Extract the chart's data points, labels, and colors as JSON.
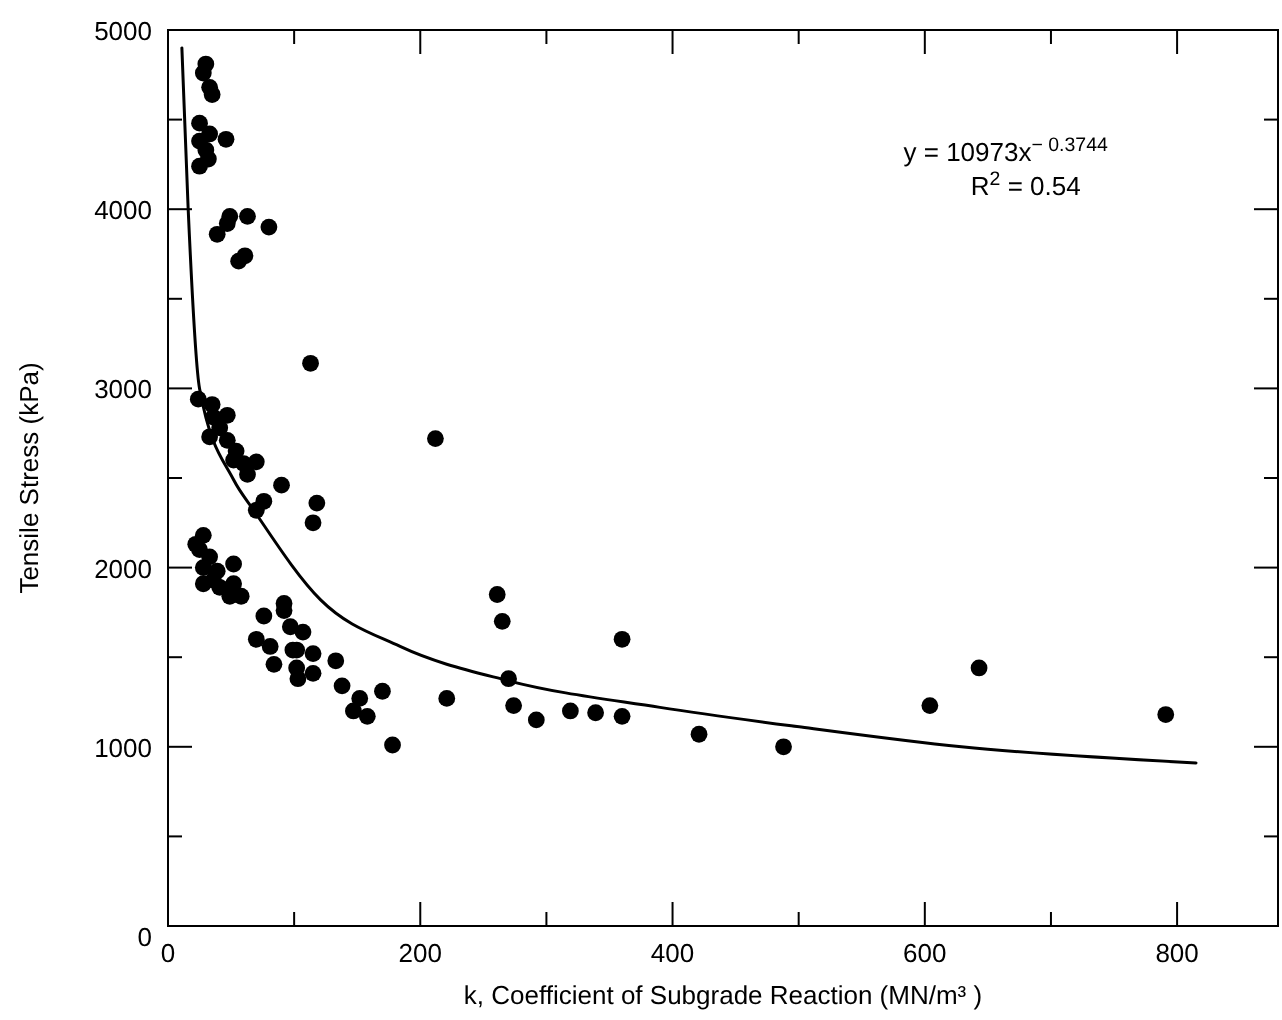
{
  "chart_data": {
    "type": "scatter",
    "xlabel": "k, Coefficient of Subgrade Reaction (MN/m³ )",
    "ylabel": "Tensile Stress (kPa)",
    "xlim": [
      0,
      880
    ],
    "ylim": [
      0,
      5000
    ],
    "xticks": [
      0,
      {
        "value": 100,
        "label": null
      },
      200,
      {
        "value": 300,
        "label": null
      },
      400,
      {
        "value": 500,
        "label": null
      },
      600,
      {
        "value": 700,
        "label": null
      },
      800
    ],
    "yticks": [
      0,
      {
        "value": 500,
        "label": null
      },
      1000,
      {
        "value": 1500,
        "label": null
      },
      2000,
      {
        "value": 2500,
        "label": null
      },
      3000,
      {
        "value": 3500,
        "label": null
      },
      4000,
      {
        "value": 4500,
        "label": null
      },
      5000
    ],
    "grid": false,
    "annotations": [
      "y = 10973x$^{− 0.3744}$",
      "R$^{2}$ = 0.54"
    ],
    "series": [
      {
        "color": "#000000",
        "marker": "circle",
        "x": [
          30,
          28,
          33,
          35,
          25,
          33,
          46,
          25,
          30,
          32,
          25,
          49,
          63,
          47,
          39,
          80,
          61,
          56,
          113,
          24,
          35,
          36,
          47,
          41,
          33,
          47,
          54,
          52,
          60,
          70,
          63,
          90,
          212,
          118,
          76,
          70,
          115,
          22,
          28,
          25,
          33,
          28,
          39,
          52,
          28,
          36,
          41,
          52,
          49,
          58,
          76,
          92,
          92,
          70,
          81,
          84,
          97,
          107,
          99,
          102,
          115,
          102,
          103,
          115,
          133,
          138,
          152,
          147,
          158,
          170,
          178,
          221,
          261,
          265,
          270,
          274,
          292,
          319,
          339,
          360,
          360,
          421,
          488,
          604,
          643,
          791
        ],
        "values": [
          4810,
          4760,
          4680,
          4640,
          4480,
          4420,
          4390,
          4380,
          4330,
          4280,
          4240,
          3960,
          3960,
          3920,
          3860,
          3900,
          3740,
          3710,
          3140,
          2940,
          2910,
          2840,
          2850,
          2780,
          2730,
          2710,
          2650,
          2600,
          2580,
          2590,
          2520,
          2460,
          2720,
          2360,
          2370,
          2320,
          2250,
          2130,
          2180,
          2100,
          2060,
          2000,
          1980,
          2020,
          1910,
          1930,
          1890,
          1910,
          1840,
          1840,
          1730,
          1800,
          1760,
          1600,
          1560,
          1460,
          1670,
          1640,
          1540,
          1540,
          1520,
          1440,
          1380,
          1410,
          1480,
          1340,
          1270,
          1200,
          1170,
          1310,
          1010,
          1270,
          1850,
          1700,
          1380,
          1230,
          1150,
          1200,
          1190,
          1170,
          1600,
          1070,
          1000,
          1230,
          1440,
          1180
        ]
      },
      {
        "type": "line",
        "color": "#000000",
        "marker": "none",
        "line_style": "solid",
        "x": [
          11,
          16,
          25,
          52,
          68,
          121,
          184,
          269,
          390,
          502,
          629,
          815
        ],
        "values": [
          4900,
          4000,
          3000,
          2490,
          2320,
          1820,
          1560,
          1370,
          1220,
          1110,
          1000,
          910
        ]
      }
    ]
  }
}
